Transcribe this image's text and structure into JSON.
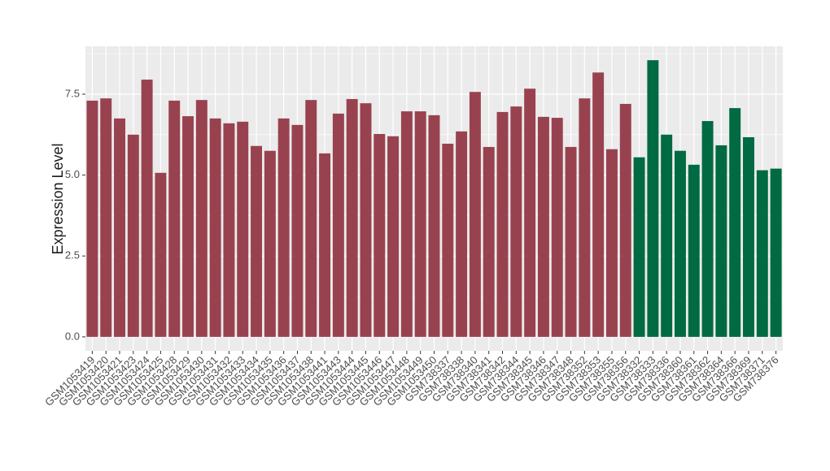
{
  "chart_data": {
    "type": "bar",
    "y_label": "Expression Level",
    "categories": [
      "GSM1053419",
      "GSM1053420",
      "GSM1053421",
      "GSM1053423",
      "GSM1053424",
      "GSM1053425",
      "GSM1053428",
      "GSM1053429",
      "GSM1053430",
      "GSM1053431",
      "GSM1053432",
      "GSM1053433",
      "GSM1053434",
      "GSM1053435",
      "GSM1053436",
      "GSM1053437",
      "GSM1053438",
      "GSM1053441",
      "GSM1053443",
      "GSM1053444",
      "GSM1053445",
      "GSM1053446",
      "GSM1053447",
      "GSM1053448",
      "GSM1053449",
      "GSM1053450",
      "GSM738337",
      "GSM738338",
      "GSM738340",
      "GSM738341",
      "GSM738342",
      "GSM738344",
      "GSM738345",
      "GSM738346",
      "GSM738347",
      "GSM738348",
      "GSM738352",
      "GSM738353",
      "GSM738355",
      "GSM738356",
      "GSM738332",
      "GSM738333",
      "GSM738336",
      "GSM738360",
      "GSM738361",
      "GSM738362",
      "GSM738364",
      "GSM738366",
      "GSM738369",
      "GSM738371",
      "GSM738376"
    ],
    "values": [
      7.3,
      7.37,
      6.75,
      6.25,
      7.95,
      5.07,
      7.3,
      6.82,
      7.32,
      6.75,
      6.6,
      6.65,
      5.9,
      5.75,
      6.75,
      6.55,
      7.32,
      5.67,
      6.9,
      7.35,
      7.22,
      6.27,
      6.2,
      6.97,
      6.97,
      6.85,
      5.97,
      6.35,
      7.57,
      5.87,
      6.95,
      7.12,
      7.67,
      6.8,
      6.77,
      5.87,
      7.37,
      8.17,
      5.8,
      7.2,
      5.55,
      8.55,
      6.25,
      5.75,
      5.32,
      6.67,
      5.92,
      7.07,
      6.17,
      5.15,
      5.2
    ],
    "bar_colors": [
      "#99424f",
      "#99424f",
      "#99424f",
      "#99424f",
      "#99424f",
      "#99424f",
      "#99424f",
      "#99424f",
      "#99424f",
      "#99424f",
      "#99424f",
      "#99424f",
      "#99424f",
      "#99424f",
      "#99424f",
      "#99424f",
      "#99424f",
      "#99424f",
      "#99424f",
      "#99424f",
      "#99424f",
      "#99424f",
      "#99424f",
      "#99424f",
      "#99424f",
      "#99424f",
      "#99424f",
      "#99424f",
      "#99424f",
      "#99424f",
      "#99424f",
      "#99424f",
      "#99424f",
      "#99424f",
      "#99424f",
      "#99424f",
      "#99424f",
      "#99424f",
      "#99424f",
      "#99424f",
      "#006a43",
      "#006a43",
      "#006a43",
      "#006a43",
      "#006a43",
      "#006a43",
      "#006a43",
      "#006a43",
      "#006a43",
      "#006a43",
      "#006a43"
    ],
    "ylim": [
      -0.43,
      8.98
    ],
    "yticks": [
      {
        "value": 0,
        "label": "0.0"
      },
      2.5,
      {
        "value": 5,
        "label": "5.0"
      },
      7.5
    ],
    "grid": true
  }
}
